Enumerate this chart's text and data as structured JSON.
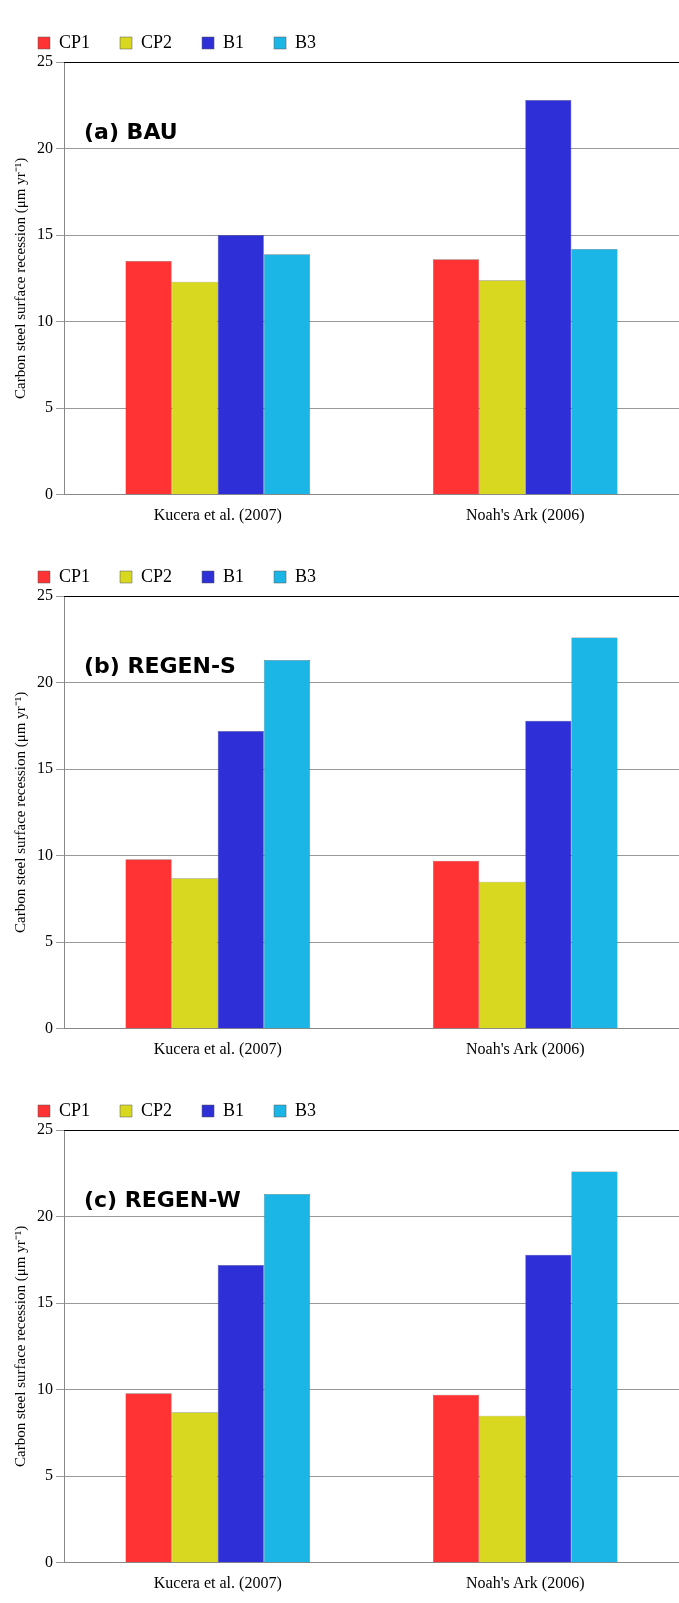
{
  "chart_data": [
    {
      "type": "bar",
      "categories": [
        "Kucera et al. (2007)",
        "Noah's Ark (2006)"
      ],
      "ylabel": "Carbon steel surface recession (μm yr⁻¹)",
      "annotations": [
        "(a) BAU"
      ],
      "ylim": [
        0,
        25
      ],
      "yticks": [
        0,
        5,
        10,
        15,
        20,
        25
      ],
      "grid": "y",
      "legend": "top left",
      "series": [
        {
          "name": "CP1",
          "color": "#ff3333",
          "values": [
            13.5,
            13.6
          ]
        },
        {
          "name": "CP2",
          "color": "#d8d820",
          "values": [
            12.3,
            12.4
          ]
        },
        {
          "name": "B1",
          "color": "#2f2fd8",
          "values": [
            15.0,
            22.8
          ]
        },
        {
          "name": "B3",
          "color": "#1cb6e6",
          "values": [
            13.9,
            14.2
          ]
        }
      ]
    },
    {
      "type": "bar",
      "categories": [
        "Kucera et al. (2007)",
        "Noah's Ark (2006)"
      ],
      "ylabel": "Carbon steel surface recession (μm yr⁻¹)",
      "annotations": [
        "(b) REGEN-S"
      ],
      "ylim": [
        0,
        25
      ],
      "yticks": [
        0,
        5,
        10,
        15,
        20,
        25
      ],
      "grid": "y",
      "legend": "top left",
      "series": [
        {
          "name": "CP1",
          "color": "#ff3333",
          "values": [
            9.8,
            9.7
          ]
        },
        {
          "name": "CP2",
          "color": "#d8d820",
          "values": [
            8.7,
            8.5
          ]
        },
        {
          "name": "B1",
          "color": "#2f2fd8",
          "values": [
            17.2,
            17.8
          ]
        },
        {
          "name": "B3",
          "color": "#1cb6e6",
          "values": [
            21.3,
            22.6
          ]
        }
      ]
    },
    {
      "type": "bar",
      "categories": [
        "Kucera et al. (2007)",
        "Noah's Ark (2006)"
      ],
      "ylabel": "Carbon steel surface recession (μm yr⁻¹)",
      "annotations": [
        "(c) REGEN-W"
      ],
      "ylim": [
        0,
        25
      ],
      "yticks": [
        0,
        5,
        10,
        15,
        20,
        25
      ],
      "grid": "y",
      "legend": "top left",
      "series": [
        {
          "name": "CP1",
          "color": "#ff3333",
          "values": [
            9.8,
            9.7
          ]
        },
        {
          "name": "CP2",
          "color": "#d8d820",
          "values": [
            8.7,
            8.5
          ]
        },
        {
          "name": "B1",
          "color": "#2f2fd8",
          "values": [
            17.2,
            17.8
          ]
        },
        {
          "name": "B3",
          "color": "#1cb6e6",
          "values": [
            21.3,
            22.6
          ]
        }
      ]
    }
  ]
}
